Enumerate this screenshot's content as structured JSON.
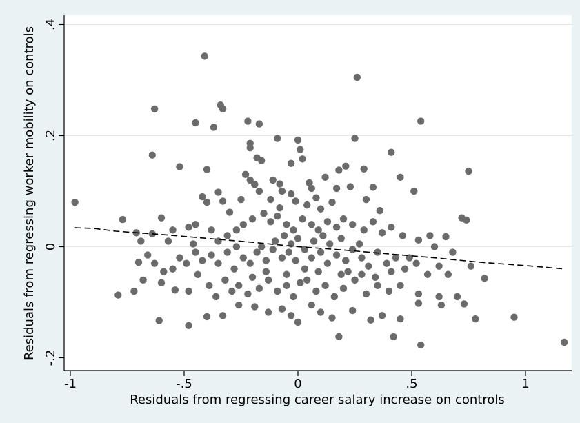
{
  "chart_data": {
    "type": "scatter",
    "title": "",
    "xlabel": "Residuals from regressing career salary increase on controls",
    "ylabel": "Residuals from regressing worker mobility on controls",
    "xlim": [
      -1.0,
      1.2
    ],
    "ylim": [
      -0.2,
      0.4
    ],
    "xticks": [
      -1,
      -0.5,
      0,
      0.5,
      1
    ],
    "xtick_labels": [
      "-1",
      "-.5",
      "0",
      ".5",
      "1"
    ],
    "yticks": [
      -0.2,
      0,
      0.2,
      0.4
    ],
    "ytick_labels": [
      "-.2",
      "0",
      ".2",
      ".4"
    ],
    "grid": "horizontal",
    "colors": {
      "page": "#eaf2f3",
      "plot": "#ffffff",
      "points": "#6b6b6b",
      "fit": "#000000",
      "grid": "#e6e6e6"
    },
    "series": [
      {
        "kind": "points",
        "points": [
          [
            -0.41,
            0.343
          ],
          [
            0.26,
            0.305
          ],
          [
            -0.63,
            0.248
          ],
          [
            -0.34,
            0.255
          ],
          [
            -0.33,
            0.248
          ],
          [
            -0.45,
            0.223
          ],
          [
            -0.37,
            0.215
          ],
          [
            -0.22,
            0.226
          ],
          [
            -0.17,
            0.221
          ],
          [
            0.54,
            0.226
          ],
          [
            -0.64,
            0.165
          ],
          [
            -0.52,
            0.144
          ],
          [
            -0.4,
            0.139
          ],
          [
            -0.21,
            0.186
          ],
          [
            -0.21,
            0.178
          ],
          [
            -0.09,
            0.195
          ],
          [
            0.0,
            0.192
          ],
          [
            0.01,
            0.175
          ],
          [
            0.25,
            0.195
          ],
          [
            0.41,
            0.17
          ],
          [
            -0.18,
            0.16
          ],
          [
            -0.16,
            0.155
          ],
          [
            -0.03,
            0.15
          ],
          [
            0.02,
            0.158
          ],
          [
            0.18,
            0.138
          ],
          [
            0.21,
            0.145
          ],
          [
            0.29,
            0.14
          ],
          [
            -0.98,
            0.08
          ],
          [
            -0.77,
            0.049
          ],
          [
            -0.23,
            0.13
          ],
          [
            -0.21,
            0.12
          ],
          [
            -0.19,
            0.112
          ],
          [
            -0.11,
            0.12
          ],
          [
            -0.08,
            0.113
          ],
          [
            0.05,
            0.115
          ],
          [
            0.12,
            0.125
          ],
          [
            0.75,
            0.136
          ],
          [
            -0.6,
            0.052
          ],
          [
            -0.42,
            0.09
          ],
          [
            -0.4,
            0.08
          ],
          [
            -0.35,
            0.098
          ],
          [
            -0.33,
            0.082
          ],
          [
            -0.3,
            0.062
          ],
          [
            -0.17,
            0.1
          ],
          [
            -0.07,
            0.1
          ],
          [
            -0.03,
            0.095
          ],
          [
            0.06,
            0.105
          ],
          [
            0.17,
            0.105
          ],
          [
            0.23,
            0.108
          ],
          [
            0.33,
            0.107
          ],
          [
            0.51,
            0.1
          ],
          [
            0.45,
            0.125
          ],
          [
            -0.71,
            0.025
          ],
          [
            -0.69,
            0.01
          ],
          [
            -0.64,
            0.023
          ],
          [
            -0.55,
            0.03
          ],
          [
            -0.48,
            0.035
          ],
          [
            -0.45,
            0.04
          ],
          [
            -0.38,
            0.03
          ],
          [
            -0.35,
            0.01
          ],
          [
            -0.31,
            0.02
          ],
          [
            -0.27,
            0.03
          ],
          [
            -0.24,
            0.04
          ],
          [
            -0.2,
            0.05
          ],
          [
            -0.15,
            0.06
          ],
          [
            -0.12,
            0.045
          ],
          [
            -0.09,
            0.055
          ],
          [
            -0.05,
            0.04
          ],
          [
            -0.02,
            0.03
          ],
          [
            0.02,
            0.05
          ],
          [
            0.06,
            0.04
          ],
          [
            0.09,
            0.03
          ],
          [
            0.13,
            0.045
          ],
          [
            0.17,
            0.035
          ],
          [
            0.2,
            0.05
          ],
          [
            0.24,
            0.04
          ],
          [
            0.29,
            0.03
          ],
          [
            0.33,
            0.045
          ],
          [
            0.37,
            0.025
          ],
          [
            0.41,
            0.035
          ],
          [
            0.46,
            0.02
          ],
          [
            0.53,
            0.012
          ],
          [
            0.58,
            0.02
          ],
          [
            0.65,
            0.018
          ],
          [
            0.72,
            0.052
          ],
          [
            0.74,
            0.048
          ],
          [
            -0.7,
            -0.028
          ],
          [
            -0.66,
            -0.015
          ],
          [
            -0.63,
            -0.03
          ],
          [
            -0.59,
            -0.045
          ],
          [
            -0.55,
            -0.04
          ],
          [
            -0.52,
            -0.02
          ],
          [
            -0.49,
            -0.03
          ],
          [
            -0.45,
            -0.01
          ],
          [
            -0.42,
            -0.025
          ],
          [
            -0.38,
            -0.015
          ],
          [
            -0.35,
            -0.03
          ],
          [
            -0.31,
            -0.01
          ],
          [
            -0.28,
            -0.04
          ],
          [
            -0.24,
            -0.02
          ],
          [
            -0.21,
            -0.03
          ],
          [
            -0.18,
            -0.01
          ],
          [
            -0.14,
            -0.025
          ],
          [
            -0.11,
            -0.005
          ],
          [
            -0.07,
            -0.02
          ],
          [
            -0.04,
            -0.01
          ],
          [
            -0.01,
            -0.025
          ],
          [
            0.03,
            -0.005
          ],
          [
            0.06,
            -0.02
          ],
          [
            0.1,
            -0.01
          ],
          [
            0.13,
            -0.03
          ],
          [
            0.17,
            -0.015
          ],
          [
            0.21,
            -0.025
          ],
          [
            0.24,
            -0.005
          ],
          [
            0.28,
            -0.02
          ],
          [
            0.31,
            -0.035
          ],
          [
            0.35,
            -0.01
          ],
          [
            0.39,
            -0.03
          ],
          [
            0.43,
            -0.02
          ],
          [
            0.47,
            -0.04
          ],
          [
            0.52,
            -0.03
          ],
          [
            0.57,
            -0.05
          ],
          [
            0.62,
            -0.035
          ],
          [
            0.66,
            -0.05
          ],
          [
            0.76,
            -0.035
          ],
          [
            -0.72,
            -0.08
          ],
          [
            -0.68,
            -0.06
          ],
          [
            -0.6,
            -0.065
          ],
          [
            -0.54,
            -0.078
          ],
          [
            -0.48,
            -0.08
          ],
          [
            -0.44,
            -0.05
          ],
          [
            -0.39,
            -0.07
          ],
          [
            -0.36,
            -0.09
          ],
          [
            -0.32,
            -0.06
          ],
          [
            -0.26,
            -0.07
          ],
          [
            -0.22,
            -0.085
          ],
          [
            -0.17,
            -0.075
          ],
          [
            -0.13,
            -0.06
          ],
          [
            -0.09,
            -0.08
          ],
          [
            -0.05,
            -0.07
          ],
          [
            -0.02,
            -0.09
          ],
          [
            0.04,
            -0.06
          ],
          [
            0.08,
            -0.08
          ],
          [
            0.12,
            -0.07
          ],
          [
            0.16,
            -0.09
          ],
          [
            0.2,
            -0.075
          ],
          [
            0.25,
            -0.06
          ],
          [
            0.3,
            -0.085
          ],
          [
            0.35,
            -0.07
          ],
          [
            0.4,
            -0.08
          ],
          [
            0.45,
            -0.07
          ],
          [
            0.53,
            -0.085
          ],
          [
            0.62,
            -0.09
          ],
          [
            0.7,
            -0.09
          ],
          [
            0.82,
            -0.057
          ],
          [
            -0.79,
            -0.087
          ],
          [
            -0.61,
            -0.133
          ],
          [
            -0.48,
            -0.142
          ],
          [
            -0.4,
            -0.126
          ],
          [
            -0.33,
            -0.124
          ],
          [
            -0.26,
            -0.105
          ],
          [
            -0.19,
            -0.108
          ],
          [
            -0.13,
            -0.118
          ],
          [
            -0.07,
            -0.112
          ],
          [
            -0.03,
            -0.124
          ],
          [
            0.0,
            -0.136
          ],
          [
            0.06,
            -0.105
          ],
          [
            0.1,
            -0.118
          ],
          [
            0.15,
            -0.128
          ],
          [
            0.18,
            -0.162
          ],
          [
            0.24,
            -0.115
          ],
          [
            0.32,
            -0.132
          ],
          [
            0.37,
            -0.124
          ],
          [
            0.42,
            -0.162
          ],
          [
            0.45,
            -0.13
          ],
          [
            0.53,
            -0.102
          ],
          [
            0.54,
            -0.177
          ],
          [
            0.63,
            -0.105
          ],
          [
            0.73,
            -0.103
          ],
          [
            0.78,
            -0.13
          ],
          [
            0.95,
            -0.127
          ],
          [
            1.17,
            -0.172
          ],
          [
            -0.1,
            0.01
          ],
          [
            -0.06,
            0.02
          ],
          [
            -0.03,
            0.005
          ],
          [
            0.0,
            0.015
          ],
          [
            0.03,
            -0.04
          ],
          [
            0.07,
            0.01
          ],
          [
            0.11,
            0.02
          ],
          [
            0.14,
            0.005
          ],
          [
            0.19,
            0.015
          ],
          [
            0.22,
            -0.045
          ],
          [
            0.27,
            0.005
          ],
          [
            -0.16,
            0.0
          ],
          [
            -0.2,
            -0.055
          ],
          [
            -0.27,
            0.0
          ],
          [
            -0.08,
            0.07
          ],
          [
            0.04,
            0.075
          ],
          [
            0.1,
            0.068
          ],
          [
            0.15,
            0.08
          ],
          [
            -0.25,
            0.085
          ],
          [
            0.3,
            0.085
          ],
          [
            0.36,
            0.065
          ],
          [
            -0.12,
            0.085
          ],
          [
            -0.01,
            0.082
          ],
          [
            0.08,
            0.088
          ],
          [
            -0.05,
            -0.05
          ],
          [
            0.01,
            -0.065
          ],
          [
            0.09,
            -0.045
          ],
          [
            -0.14,
            -0.045
          ],
          [
            0.19,
            -0.05
          ],
          [
            0.28,
            -0.05
          ],
          [
            0.34,
            -0.055
          ],
          [
            -0.29,
            -0.08
          ],
          [
            0.41,
            -0.045
          ],
          [
            0.49,
            -0.02
          ],
          [
            -0.46,
            0.005
          ],
          [
            0.6,
            0.0
          ],
          [
            -0.57,
            0.01
          ],
          [
            0.68,
            -0.01
          ]
        ]
      },
      {
        "kind": "fit",
        "style": "dashed",
        "x": [
          -0.98,
          -0.9,
          -0.8,
          -0.6,
          -0.4,
          -0.2,
          0.0,
          0.2,
          0.4,
          0.6,
          0.8,
          1.0,
          1.17
        ],
        "y": [
          0.034,
          0.033,
          0.028,
          0.022,
          0.015,
          0.008,
          0.0,
          -0.006,
          -0.013,
          -0.02,
          -0.028,
          -0.034,
          -0.04
        ]
      }
    ]
  }
}
